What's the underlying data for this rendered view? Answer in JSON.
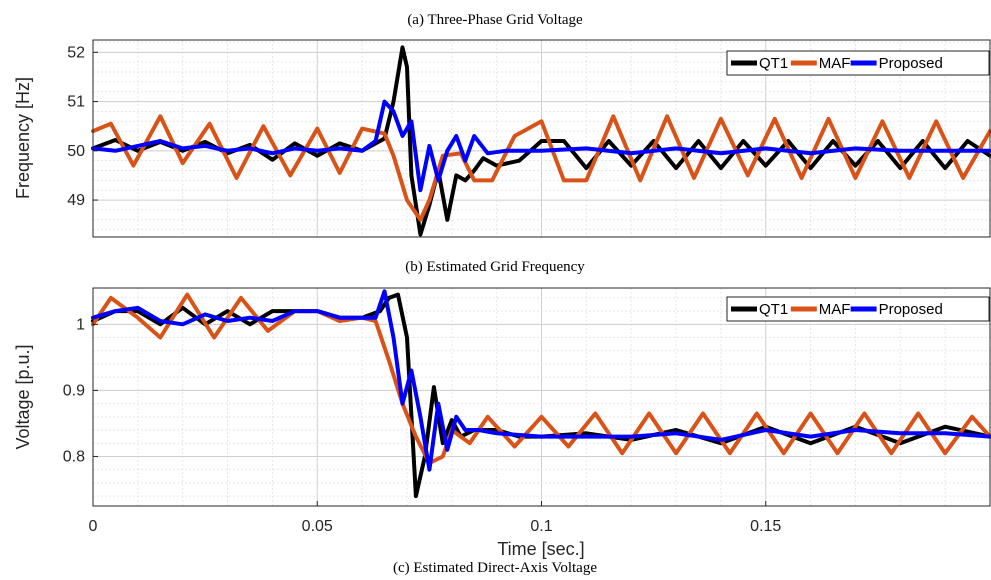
{
  "captions": {
    "a": "(a)     Three-Phase Grid Voltage",
    "b": "(b)     Estimated Grid Frequency",
    "c": "(c)     Estimated Direct-Axis Voltage"
  },
  "colors": {
    "QT1": "#000000",
    "MAF": "#d95319",
    "Proposed": "#0000ff"
  },
  "chart_data": [
    {
      "type": "line",
      "xlabel": "",
      "ylabel": "Frequency [Hz]",
      "xlim": [
        0,
        0.2
      ],
      "ylim": [
        48.25,
        52.25
      ],
      "yticks": [
        "49",
        "50",
        "51",
        "52"
      ],
      "ytick_values": [
        49,
        50,
        51,
        52
      ],
      "grid": true,
      "legend": "top-right",
      "series": [
        {
          "name": "QT1",
          "points": [
            [
              0,
              50.05
            ],
            [
              0.005,
              50.22
            ],
            [
              0.01,
              50.0
            ],
            [
              0.015,
              50.18
            ],
            [
              0.02,
              50.0
            ],
            [
              0.025,
              50.18
            ],
            [
              0.03,
              49.95
            ],
            [
              0.035,
              50.12
            ],
            [
              0.04,
              49.82
            ],
            [
              0.045,
              50.15
            ],
            [
              0.05,
              49.9
            ],
            [
              0.055,
              50.15
            ],
            [
              0.06,
              50.0
            ],
            [
              0.065,
              50.25
            ],
            [
              0.067,
              51.0
            ],
            [
              0.069,
              52.1
            ],
            [
              0.07,
              51.7
            ],
            [
              0.071,
              49.5
            ],
            [
              0.073,
              48.3
            ],
            [
              0.075,
              48.9
            ],
            [
              0.077,
              49.6
            ],
            [
              0.079,
              48.6
            ],
            [
              0.081,
              49.5
            ],
            [
              0.083,
              49.4
            ],
            [
              0.085,
              49.6
            ],
            [
              0.087,
              49.85
            ],
            [
              0.09,
              49.7
            ],
            [
              0.095,
              49.8
            ],
            [
              0.1,
              50.2
            ],
            [
              0.105,
              50.2
            ],
            [
              0.11,
              49.65
            ],
            [
              0.115,
              50.2
            ],
            [
              0.12,
              49.7
            ],
            [
              0.125,
              50.2
            ],
            [
              0.13,
              49.65
            ],
            [
              0.135,
              50.2
            ],
            [
              0.14,
              49.65
            ],
            [
              0.145,
              50.2
            ],
            [
              0.15,
              49.7
            ],
            [
              0.155,
              50.2
            ],
            [
              0.16,
              49.65
            ],
            [
              0.165,
              50.2
            ],
            [
              0.17,
              49.7
            ],
            [
              0.175,
              50.2
            ],
            [
              0.18,
              49.65
            ],
            [
              0.185,
              50.2
            ],
            [
              0.19,
              49.65
            ],
            [
              0.195,
              50.2
            ],
            [
              0.2,
              49.9
            ]
          ]
        },
        {
          "name": "MAF",
          "points": [
            [
              0,
              50.4
            ],
            [
              0.004,
              50.55
            ],
            [
              0.009,
              49.7
            ],
            [
              0.015,
              50.7
            ],
            [
              0.02,
              49.75
            ],
            [
              0.026,
              50.55
            ],
            [
              0.032,
              49.45
            ],
            [
              0.038,
              50.5
            ],
            [
              0.044,
              49.5
            ],
            [
              0.05,
              50.45
            ],
            [
              0.055,
              49.55
            ],
            [
              0.06,
              50.45
            ],
            [
              0.065,
              50.35
            ],
            [
              0.067,
              49.9
            ],
            [
              0.07,
              49.0
            ],
            [
              0.073,
              48.6
            ],
            [
              0.075,
              49.0
            ],
            [
              0.078,
              49.9
            ],
            [
              0.082,
              49.95
            ],
            [
              0.085,
              49.4
            ],
            [
              0.089,
              49.4
            ],
            [
              0.094,
              50.3
            ],
            [
              0.1,
              50.6
            ],
            [
              0.105,
              49.4
            ],
            [
              0.11,
              49.4
            ],
            [
              0.116,
              50.7
            ],
            [
              0.122,
              49.4
            ],
            [
              0.128,
              50.7
            ],
            [
              0.134,
              49.45
            ],
            [
              0.14,
              50.65
            ],
            [
              0.146,
              49.5
            ],
            [
              0.152,
              50.65
            ],
            [
              0.158,
              49.45
            ],
            [
              0.164,
              50.65
            ],
            [
              0.17,
              49.45
            ],
            [
              0.176,
              50.6
            ],
            [
              0.182,
              49.45
            ],
            [
              0.188,
              50.6
            ],
            [
              0.194,
              49.45
            ],
            [
              0.2,
              50.4
            ]
          ]
        },
        {
          "name": "Proposed",
          "points": [
            [
              0,
              50.05
            ],
            [
              0.005,
              50.0
            ],
            [
              0.01,
              50.1
            ],
            [
              0.015,
              50.2
            ],
            [
              0.02,
              50.05
            ],
            [
              0.025,
              50.1
            ],
            [
              0.03,
              50.0
            ],
            [
              0.035,
              50.05
            ],
            [
              0.04,
              49.95
            ],
            [
              0.045,
              50.05
            ],
            [
              0.05,
              50.0
            ],
            [
              0.055,
              50.05
            ],
            [
              0.06,
              50.0
            ],
            [
              0.063,
              50.2
            ],
            [
              0.065,
              51.0
            ],
            [
              0.067,
              50.8
            ],
            [
              0.069,
              50.3
            ],
            [
              0.071,
              50.6
            ],
            [
              0.073,
              49.2
            ],
            [
              0.075,
              50.1
            ],
            [
              0.077,
              49.4
            ],
            [
              0.079,
              50.0
            ],
            [
              0.081,
              50.3
            ],
            [
              0.083,
              49.8
            ],
            [
              0.085,
              50.3
            ],
            [
              0.088,
              49.95
            ],
            [
              0.092,
              50.0
            ],
            [
              0.1,
              50.0
            ],
            [
              0.11,
              50.05
            ],
            [
              0.12,
              49.95
            ],
            [
              0.13,
              50.05
            ],
            [
              0.14,
              49.95
            ],
            [
              0.15,
              50.05
            ],
            [
              0.16,
              49.95
            ],
            [
              0.17,
              50.05
            ],
            [
              0.18,
              50.0
            ],
            [
              0.19,
              50.0
            ],
            [
              0.2,
              50.0
            ]
          ]
        }
      ]
    },
    {
      "type": "line",
      "xlabel": "Time [sec.]",
      "ylabel": "Voltage [p.u.]",
      "xlim": [
        0,
        0.2
      ],
      "ylim": [
        0.725,
        1.055
      ],
      "xticks": [
        "0",
        "0.05",
        "0.1",
        "0.15"
      ],
      "xtick_values": [
        0,
        0.05,
        0.1,
        0.15
      ],
      "yticks": [
        "0.8",
        "0.9",
        "1"
      ],
      "ytick_values": [
        0.8,
        0.9,
        1.0
      ],
      "grid": true,
      "legend": "top-right",
      "series": [
        {
          "name": "QT1",
          "points": [
            [
              0,
              1.005
            ],
            [
              0.005,
              1.02
            ],
            [
              0.01,
              1.02
            ],
            [
              0.015,
              1.0
            ],
            [
              0.02,
              1.025
            ],
            [
              0.025,
              1.0
            ],
            [
              0.03,
              1.02
            ],
            [
              0.035,
              1.0
            ],
            [
              0.04,
              1.02
            ],
            [
              0.045,
              1.02
            ],
            [
              0.05,
              1.02
            ],
            [
              0.055,
              1.01
            ],
            [
              0.06,
              1.01
            ],
            [
              0.064,
              1.02
            ],
            [
              0.066,
              1.04
            ],
            [
              0.068,
              1.045
            ],
            [
              0.07,
              0.98
            ],
            [
              0.072,
              0.74
            ],
            [
              0.074,
              0.8
            ],
            [
              0.076,
              0.905
            ],
            [
              0.078,
              0.82
            ],
            [
              0.08,
              0.855
            ],
            [
              0.082,
              0.83
            ],
            [
              0.085,
              0.84
            ],
            [
              0.09,
              0.84
            ],
            [
              0.095,
              0.83
            ],
            [
              0.1,
              0.83
            ],
            [
              0.11,
              0.835
            ],
            [
              0.12,
              0.825
            ],
            [
              0.13,
              0.84
            ],
            [
              0.14,
              0.82
            ],
            [
              0.15,
              0.845
            ],
            [
              0.16,
              0.82
            ],
            [
              0.17,
              0.845
            ],
            [
              0.18,
              0.82
            ],
            [
              0.19,
              0.845
            ],
            [
              0.2,
              0.83
            ]
          ]
        },
        {
          "name": "MAF",
          "points": [
            [
              0,
              1.0
            ],
            [
              0.004,
              1.04
            ],
            [
              0.01,
              1.01
            ],
            [
              0.015,
              0.98
            ],
            [
              0.021,
              1.045
            ],
            [
              0.027,
              0.98
            ],
            [
              0.033,
              1.04
            ],
            [
              0.039,
              0.99
            ],
            [
              0.045,
              1.02
            ],
            [
              0.05,
              1.02
            ],
            [
              0.055,
              1.005
            ],
            [
              0.06,
              1.01
            ],
            [
              0.063,
              1.005
            ],
            [
              0.066,
              0.945
            ],
            [
              0.069,
              0.88
            ],
            [
              0.072,
              0.83
            ],
            [
              0.075,
              0.79
            ],
            [
              0.078,
              0.8
            ],
            [
              0.08,
              0.84
            ],
            [
              0.084,
              0.82
            ],
            [
              0.088,
              0.86
            ],
            [
              0.094,
              0.815
            ],
            [
              0.1,
              0.86
            ],
            [
              0.106,
              0.815
            ],
            [
              0.112,
              0.865
            ],
            [
              0.118,
              0.805
            ],
            [
              0.124,
              0.865
            ],
            [
              0.13,
              0.805
            ],
            [
              0.136,
              0.865
            ],
            [
              0.142,
              0.805
            ],
            [
              0.148,
              0.865
            ],
            [
              0.154,
              0.805
            ],
            [
              0.16,
              0.865
            ],
            [
              0.166,
              0.805
            ],
            [
              0.172,
              0.865
            ],
            [
              0.178,
              0.805
            ],
            [
              0.184,
              0.865
            ],
            [
              0.19,
              0.805
            ],
            [
              0.196,
              0.86
            ],
            [
              0.2,
              0.83
            ]
          ]
        },
        {
          "name": "Proposed",
          "points": [
            [
              0,
              1.01
            ],
            [
              0.005,
              1.02
            ],
            [
              0.01,
              1.025
            ],
            [
              0.015,
              1.005
            ],
            [
              0.02,
              1.0
            ],
            [
              0.025,
              1.015
            ],
            [
              0.03,
              1.005
            ],
            [
              0.035,
              1.01
            ],
            [
              0.04,
              1.005
            ],
            [
              0.045,
              1.02
            ],
            [
              0.05,
              1.02
            ],
            [
              0.055,
              1.01
            ],
            [
              0.06,
              1.01
            ],
            [
              0.063,
              1.01
            ],
            [
              0.065,
              1.05
            ],
            [
              0.067,
              0.98
            ],
            [
              0.069,
              0.88
            ],
            [
              0.071,
              0.93
            ],
            [
              0.073,
              0.86
            ],
            [
              0.075,
              0.78
            ],
            [
              0.077,
              0.88
            ],
            [
              0.079,
              0.81
            ],
            [
              0.081,
              0.86
            ],
            [
              0.083,
              0.84
            ],
            [
              0.086,
              0.84
            ],
            [
              0.09,
              0.835
            ],
            [
              0.1,
              0.83
            ],
            [
              0.11,
              0.83
            ],
            [
              0.12,
              0.83
            ],
            [
              0.13,
              0.835
            ],
            [
              0.14,
              0.825
            ],
            [
              0.15,
              0.84
            ],
            [
              0.16,
              0.83
            ],
            [
              0.17,
              0.84
            ],
            [
              0.18,
              0.835
            ],
            [
              0.19,
              0.835
            ],
            [
              0.2,
              0.83
            ]
          ]
        }
      ]
    }
  ]
}
